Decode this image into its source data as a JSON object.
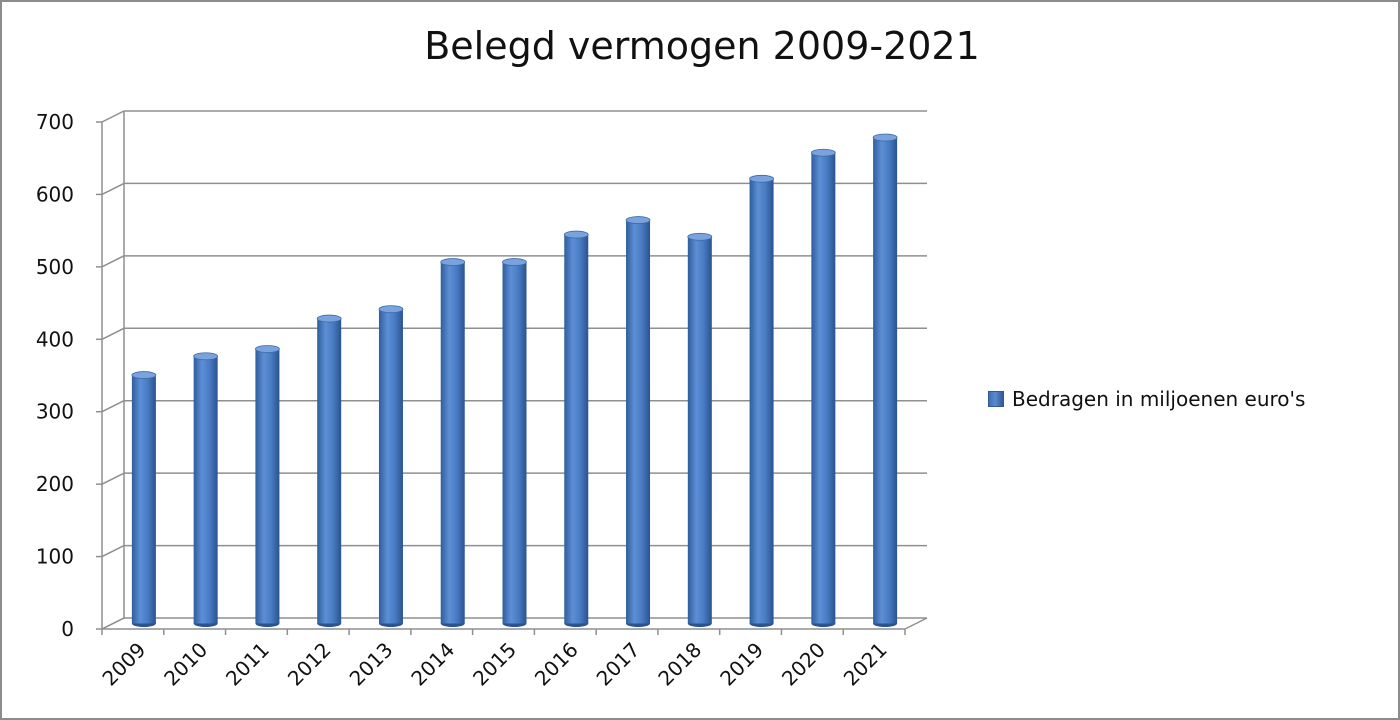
{
  "chart_data": {
    "type": "bar",
    "title": "Belegd vermogen 2009-2021",
    "categories": [
      "2009",
      "2010",
      "2011",
      "2012",
      "2013",
      "2014",
      "2015",
      "2016",
      "2017",
      "2018",
      "2019",
      "2020",
      "2021"
    ],
    "series": [
      {
        "name": "Bedragen in miljoenen euro's",
        "values": [
          343,
          369,
          379,
          421,
          434,
          499,
          499,
          537,
          557,
          534,
          614,
          650,
          671
        ],
        "color": "#4472c4"
      }
    ],
    "yticks": [
      "0",
      "100",
      "200",
      "300",
      "400",
      "500",
      "600",
      "700"
    ],
    "ylim": [
      0,
      700
    ],
    "grid": true,
    "legend": "right",
    "xlabel": "",
    "ylabel": ""
  }
}
